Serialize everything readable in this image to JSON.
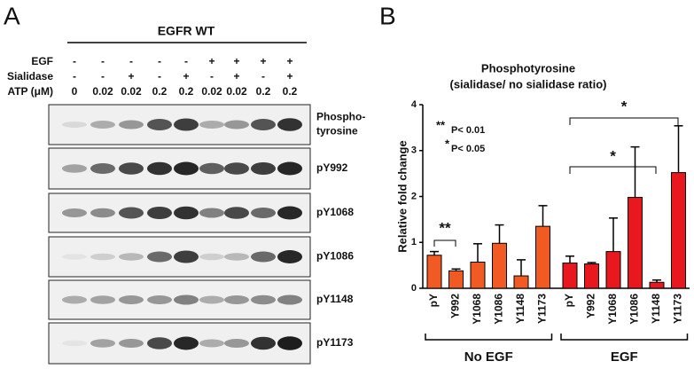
{
  "panel_a": {
    "label": "A",
    "header": "EGFR WT",
    "row_labels": [
      "EGF",
      "Sialidase",
      "ATP (μM)"
    ],
    "rows": [
      [
        "-",
        "-",
        "-",
        "-",
        "-",
        "+",
        "+",
        "+",
        "+"
      ],
      [
        "-",
        "-",
        "+",
        "-",
        "+",
        "-",
        "+",
        "-",
        "+"
      ],
      [
        "0",
        "0.02",
        "0.02",
        "0.2",
        "0.2",
        "0.02",
        "0.02",
        "0.2",
        "0.2"
      ]
    ],
    "blots": [
      [
        "Phospho-",
        "tyrosine"
      ],
      [
        "pY992"
      ],
      [
        "pY1068"
      ],
      [
        "pY1086"
      ],
      [
        "pY1148"
      ],
      [
        "pY1173"
      ]
    ]
  },
  "chart_data": {
    "type": "bar",
    "label": "B",
    "title": "Phosphotyrosine",
    "subtitle": "(sialidase/ no sialidase ratio)",
    "y_label": "Relative fold change",
    "ylim": [
      0,
      4
    ],
    "yticks": [
      0,
      1,
      2,
      3,
      4
    ],
    "groups": [
      {
        "name": "No EGF",
        "color": "#f15a22",
        "categories": [
          "pY",
          "Y992",
          "Y1068",
          "Y1086",
          "Y1148",
          "Y1173"
        ],
        "values": [
          0.72,
          0.38,
          0.57,
          0.98,
          0.27,
          1.35
        ],
        "errors": [
          0.08,
          0.04,
          0.4,
          0.4,
          0.35,
          0.45
        ]
      },
      {
        "name": "EGF",
        "color": "#e8181e",
        "categories": [
          "pY",
          "Y992",
          "Y1068",
          "Y1086",
          "Y1148",
          "Y1173"
        ],
        "values": [
          0.55,
          0.53,
          0.8,
          1.98,
          0.13,
          2.52
        ],
        "errors": [
          0.15,
          0.03,
          0.73,
          1.1,
          0.05,
          1.02
        ]
      }
    ],
    "annotations": [
      "**",
      "P< 0.01",
      "*",
      "P< 0.05"
    ],
    "significance_labels": [
      "**",
      "*",
      "*"
    ]
  }
}
